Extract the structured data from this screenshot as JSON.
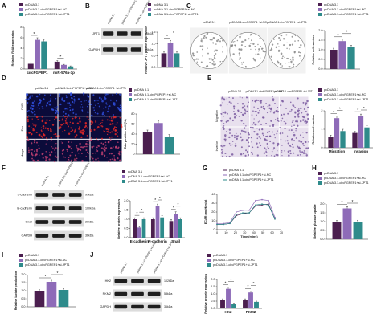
{
  "panel_labels": [
    "A",
    "B",
    "C",
    "D",
    "E",
    "F",
    "G",
    "H",
    "I",
    "J"
  ],
  "images": [
    {
      "columns": [
        "pcDNA 3.1",
        "pcDNA3.1-circPGPEP1 +si-NC",
        "pcDNA3.1-circPGPEP1 +si-JPT1"
      ]
    },
    {
      "columns": [
        "pcDNA 3.1",
        "pcDNA3.1-circPGPEP1 +si-NC",
        "pcDNA3.1-circPGPEP1 +si-JPT1"
      ],
      "rows": [
        "DAPI",
        "Edu",
        "Merge"
      ]
    },
    {
      "columns": [
        "pcDNA 3.1",
        "pcDNA3.1-circPGPEP1 +si-NC",
        "pcDNA3.1-circPGPEP1 +si-JPT1"
      ],
      "rows": [
        "Migration",
        "Invasion"
      ]
    }
  ],
  "blots": [
    {
      "columns": [
        "pcDNA 3.1",
        "pcDNA 3.1-circPGPEP1+si-NC",
        "pcDNA 3.1-circPGPEP1+si-JPT1"
      ],
      "rows": [
        {
          "label": "JPT1",
          "kda": "16kDa"
        },
        {
          "label": "GAPDH",
          "kda": "36kDa"
        }
      ]
    },
    {
      "columns": [
        "pcDNA 3.1",
        "pcDNA 3.1-circPGPEP1+si-NC",
        "pcDNA 3.1-circPGPEP1+si-JPT1"
      ],
      "rows": [
        {
          "label": "E-cadherin",
          "kda": "97kDa"
        },
        {
          "label": "N-cadherin",
          "kda": "100kDa"
        },
        {
          "label": "Snail",
          "kda": "29kDa"
        },
        {
          "label": "GAPDH",
          "kda": "36kDa"
        }
      ]
    },
    {
      "columns": [
        "pcDNA 3.1",
        "pcDNA 3.1-circPGPEP1+si-NC",
        "pcDNA 3.1-circPGPEP1+si-JPT1"
      ],
      "rows": [
        {
          "label": "HK2",
          "kda": "102kDa"
        },
        {
          "label": "PKM2",
          "kda": "58kDa"
        },
        {
          "label": "GAPDH",
          "kda": "36kDa"
        }
      ]
    }
  ],
  "chart_data": [
    {
      "type": "bar",
      "categories": [
        "circPGPEP1",
        "miR-576a-3p"
      ],
      "ylabel": "Relative RNA expression",
      "ylim": [
        0,
        8
      ],
      "yticks": [
        0,
        2,
        4,
        6,
        8
      ],
      "series": [
        {
          "name": "pcDNA 3.1",
          "color": "#4b1f4f",
          "values": [
            1,
            1.4
          ],
          "errors": [
            0.2,
            0.2
          ]
        },
        {
          "name": "pcDNA 3.1-circPGPEP1+si-NC",
          "color": "#8e6bb8",
          "values": [
            5.6,
            0.8
          ],
          "errors": [
            0.4,
            0.1
          ]
        },
        {
          "name": "pcDNA 3.1-circPGPEP1+si-JPT1",
          "color": "#2e8b8b",
          "values": [
            5.3,
            0.5
          ],
          "errors": [
            0.4,
            0.1
          ]
        }
      ],
      "annotations": [
        [
          "*"
        ],
        [
          "*"
        ]
      ]
    },
    {
      "type": "bar",
      "ylabel": "Relative JPT1 protein expression",
      "ylim": [
        0,
        1.5
      ],
      "yticks": [
        {
          "value": 0,
          "label": "0.0"
        },
        0.5,
        {
          "value": 1,
          "label": "1.0"
        },
        1.5
      ],
      "series": [
        {
          "name": "pcDNA 3.1",
          "color": "#4b1f4f",
          "values": [
            0.6
          ],
          "errors": [
            0.08
          ]
        },
        {
          "name": "pcDNA 3.1-circPGPEP1+si-NC",
          "color": "#8e6bb8",
          "values": [
            1.05
          ],
          "errors": [
            0.1
          ]
        },
        {
          "name": "pcDNA 3.1-circPGPEP1+si-JPT1",
          "color": "#2e8b8b",
          "values": [
            0.6
          ],
          "errors": [
            0.08
          ]
        }
      ],
      "annotations": [
        [
          "*",
          "*"
        ]
      ]
    },
    {
      "type": "bar",
      "ylabel": "Relative cell number",
      "ylim": [
        0,
        2
      ],
      "yticks": [
        {
          "value": 0,
          "label": "0.0"
        },
        0.5,
        {
          "value": 1,
          "label": "1.0"
        },
        1.5,
        {
          "value": 2,
          "label": "2.0"
        }
      ],
      "series": [
        {
          "name": "pcDNA 3.1",
          "color": "#4b1f4f",
          "values": [
            1.0
          ],
          "errors": [
            0.08
          ]
        },
        {
          "name": "pcDNA 3.1-circPGPEP1+si-NC",
          "color": "#8e6bb8",
          "values": [
            1.45
          ],
          "errors": [
            0.1
          ]
        },
        {
          "name": "pcDNA 3.1-circPGPEP1+si-JPT1",
          "color": "#2e8b8b",
          "values": [
            1.15
          ],
          "errors": [
            0.08
          ]
        }
      ],
      "annotations": [
        [
          "*",
          "*"
        ]
      ]
    },
    {
      "type": "bar",
      "ylabel": "Edu positive cell (%)",
      "ylim": [
        0,
        80
      ],
      "yticks": [
        0,
        20,
        40,
        60,
        80
      ],
      "series": [
        {
          "name": "pcDNA 3.1",
          "color": "#4b1f4f",
          "values": [
            44
          ],
          "errors": [
            4
          ]
        },
        {
          "name": "pcDNA 3.1-circPGPEP1+si-NC",
          "color": "#8e6bb8",
          "values": [
            62
          ],
          "errors": [
            5
          ]
        },
        {
          "name": "pcDNA 3.1-circPGPEP1+si-JPT1",
          "color": "#2e8b8b",
          "values": [
            35
          ],
          "errors": [
            4
          ]
        }
      ]
    },
    {
      "type": "bar",
      "categories": [
        "Migration",
        "Invasion"
      ],
      "ylabel": "Relative cell number",
      "ylim": [
        0,
        2
      ],
      "yticks": [
        0,
        1,
        2
      ],
      "series": [
        {
          "name": "pcDNA 3.1",
          "color": "#4b1f4f",
          "values": [
            0.6,
            0.8
          ],
          "errors": [
            0.08,
            0.08
          ]
        },
        {
          "name": "pcDNA 3.1-circPGPEP1+si-NC",
          "color": "#8e6bb8",
          "values": [
            1.6,
            1.7
          ],
          "errors": [
            0.12,
            0.12
          ]
        },
        {
          "name": "pcDNA 3.1-circPGPEP1+si-JPT1",
          "color": "#2e8b8b",
          "values": [
            0.9,
            1.1
          ],
          "errors": [
            0.1,
            0.1
          ]
        }
      ],
      "annotations": [
        [
          "*",
          "*"
        ],
        [
          "*",
          "*"
        ]
      ]
    },
    {
      "type": "bar",
      "categories": [
        "E-cadherin",
        "N-cadherin",
        "Snail"
      ],
      "ylabel": "Relative protein expression",
      "ylim": [
        0,
        2
      ],
      "yticks": [
        {
          "value": 0,
          "label": "0.0"
        },
        0.5,
        {
          "value": 1,
          "label": "1.0"
        },
        1.5,
        {
          "value": 2,
          "label": "2.0"
        }
      ],
      "series": [
        {
          "name": "pcDNA 3.1",
          "color": "#4b1f4f",
          "values": [
            1.0,
            1.0,
            0.9
          ],
          "errors": [
            0.08,
            0.08,
            0.08
          ]
        },
        {
          "name": "pcDNA 3.1-circPGPEP1+si-NC",
          "color": "#8e6bb8",
          "values": [
            0.55,
            1.7,
            1.3
          ],
          "errors": [
            0.06,
            0.12,
            0.1
          ]
        },
        {
          "name": "pcDNA 3.1-circPGPEP1+si-JPT1",
          "color": "#2e8b8b",
          "values": [
            1.0,
            1.1,
            1.0
          ],
          "errors": [
            0.08,
            0.1,
            0.08
          ]
        }
      ],
      "annotations": [
        [
          "*",
          "*"
        ],
        [
          "*",
          "*"
        ],
        [
          "*",
          "*"
        ]
      ]
    },
    {
      "type": "line",
      "xlabel": "Time (mins)",
      "ylabel": "ECAR (mpH/min)",
      "x": [
        0,
        7,
        14,
        21,
        28,
        35,
        42,
        49,
        56,
        63
      ],
      "xlim": [
        0,
        70
      ],
      "xticks": [
        0,
        10,
        20,
        30,
        40,
        50,
        60,
        70
      ],
      "ylim": [
        0,
        40
      ],
      "yticks": [
        0,
        10,
        20,
        30,
        40
      ],
      "series": [
        {
          "name": "pcDNA 3.1",
          "color": "#4b1f4f",
          "values": [
            6,
            6,
            7,
            16,
            18,
            19,
            27,
            28,
            29,
            12
          ]
        },
        {
          "name": "pcDNA 3.1-circPGPEP1+si-NC",
          "color": "#8e6bb8",
          "values": [
            7,
            7,
            8,
            20,
            22,
            22,
            33,
            34,
            33,
            14
          ]
        },
        {
          "name": "pcDNA 3.1-circPGPEP1+si-JPT1",
          "color": "#2e8b8b",
          "values": [
            6,
            6,
            7,
            17,
            19,
            19,
            28,
            29,
            28,
            12
          ]
        }
      ]
    },
    {
      "type": "bar",
      "ylabel": "Relative glucose uptake",
      "ylim": [
        0,
        2
      ],
      "yticks": [
        {
          "value": 0,
          "label": "0.0"
        },
        0.5,
        {
          "value": 1,
          "label": "1.0"
        },
        1.5,
        {
          "value": 2,
          "label": "2.0"
        }
      ],
      "series": [
        {
          "name": "pcDNA 3.1",
          "color": "#4b1f4f",
          "values": [
            1.0
          ],
          "errors": [
            0.06
          ]
        },
        {
          "name": "pcDNA 3.1-circPGPEP1+si-NC",
          "color": "#8e6bb8",
          "values": [
            1.75
          ],
          "errors": [
            0.1
          ]
        },
        {
          "name": "pcDNA 3.1-circPGPEP1+si-JPT1",
          "color": "#2e8b8b",
          "values": [
            1.0
          ],
          "errors": [
            0.08
          ]
        }
      ],
      "annotations": [
        [
          "*",
          "*"
        ]
      ]
    },
    {
      "type": "bar",
      "ylabel": "Relative lactate production",
      "ylim": [
        0,
        2
      ],
      "yticks": [
        {
          "value": 0,
          "label": "0.0"
        },
        0.5,
        {
          "value": 1,
          "label": "1.0"
        },
        1.5,
        {
          "value": 2,
          "label": "2.0"
        }
      ],
      "series": [
        {
          "name": "pcDNA 3.1",
          "color": "#4b1f4f",
          "values": [
            1.0
          ],
          "errors": [
            0.06
          ]
        },
        {
          "name": "pcDNA 3.1-circPGPEP1+si-NC",
          "color": "#8e6bb8",
          "values": [
            1.55
          ],
          "errors": [
            0.1
          ]
        },
        {
          "name": "pcDNA 3.1-circPGPEP1+si-JPT1",
          "color": "#2e8b8b",
          "values": [
            1.05
          ],
          "errors": [
            0.08
          ]
        }
      ],
      "annotations": [
        [
          "*",
          "*"
        ]
      ]
    },
    {
      "type": "bar",
      "categories": [
        "HK2",
        "PKM2"
      ],
      "ylabel": "Relative protein expression",
      "ylim": [
        0,
        2
      ],
      "yticks": [
        {
          "value": 0,
          "label": "0.0"
        },
        0.5,
        {
          "value": 1,
          "label": "1.0"
        },
        1.5,
        {
          "value": 2,
          "label": "2.0"
        }
      ],
      "series": [
        {
          "name": "pcDNA 3.1",
          "color": "#4b1f4f",
          "values": [
            0.6,
            0.6
          ],
          "errors": [
            0.06,
            0.06
          ]
        },
        {
          "name": "pcDNA 3.1-circPGPEP1+si-NC",
          "color": "#8e6bb8",
          "values": [
            1.35,
            1.1
          ],
          "errors": [
            0.12,
            0.1
          ]
        },
        {
          "name": "pcDNA 3.1-circPGPEP1+si-JPT1",
          "color": "#2e8b8b",
          "values": [
            0.3,
            0.45
          ],
          "errors": [
            0.05,
            0.05
          ]
        }
      ],
      "annotations": [
        [
          "*",
          "*"
        ],
        [
          "*",
          "*"
        ]
      ]
    }
  ]
}
